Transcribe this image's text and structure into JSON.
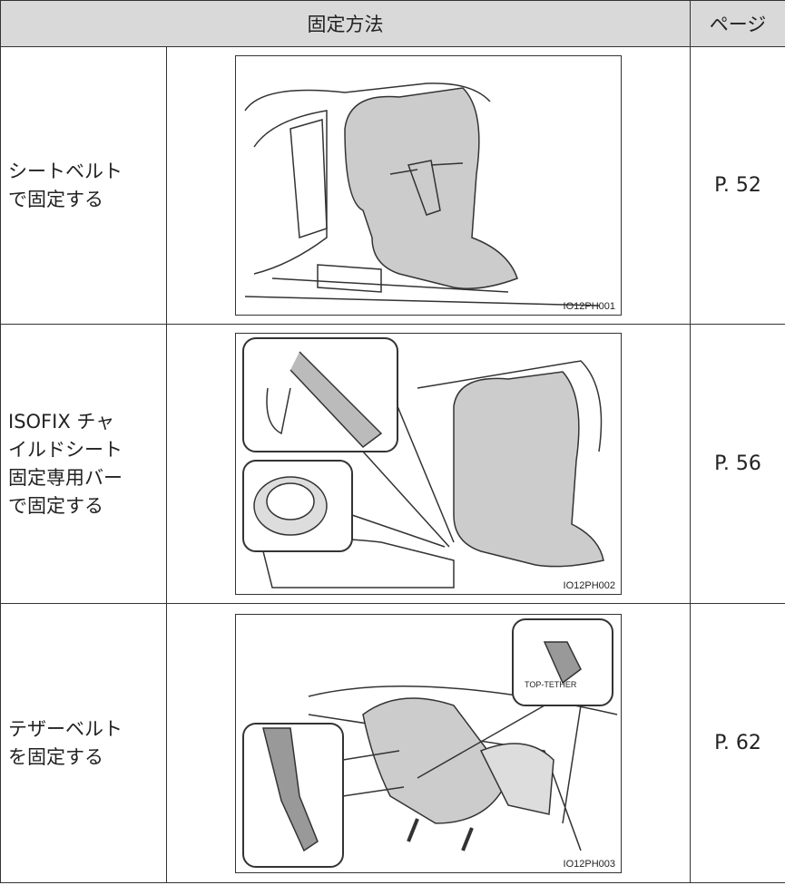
{
  "table": {
    "header": [
      "固定方法",
      "ページ"
    ],
    "rows": [
      {
        "method": [
          "シートベルト",
          "で固定する"
        ],
        "image_code": "IO12PH001",
        "page": "P. 52"
      },
      {
        "method": [
          "ISOFIX チャ",
          "イルドシート",
          "固定専用バー",
          "で固定する"
        ],
        "image_code": "IO12PH002",
        "page": "P. 56"
      },
      {
        "method": [
          "テザーベルト",
          "を固定する"
        ],
        "image_code": "IO12PH003",
        "image_label": "TOP-TETHER",
        "page": "P. 62"
      }
    ]
  }
}
